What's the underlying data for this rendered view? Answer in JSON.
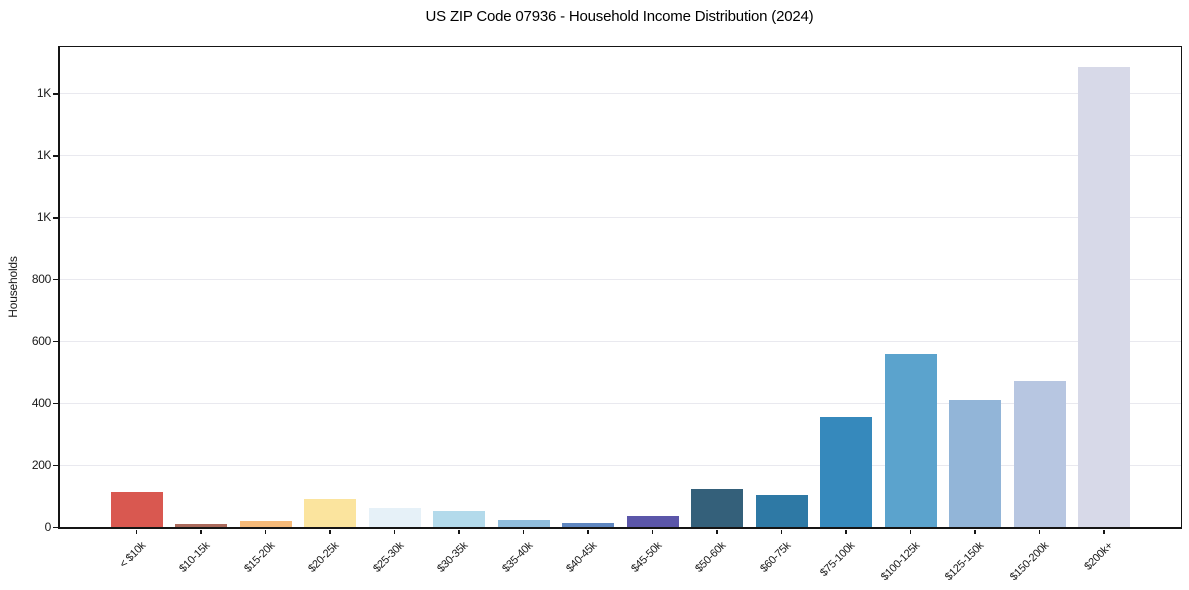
{
  "chart_data": {
    "type": "bar",
    "title": "US ZIP Code 07936 - Household Income Distribution (2024)",
    "xlabel": "",
    "ylabel": "Households",
    "categories": [
      "< $10k",
      "$10-15k",
      "$15-20k",
      "$20-25k",
      "$25-30k",
      "$30-35k",
      "$35-40k",
      "$40-45k",
      "$45-50k",
      "$50-60k",
      "$60-75k",
      "$75-100k",
      "$100-125k",
      "$125-150k",
      "$150-200k",
      "$200k+"
    ],
    "values": [
      114,
      9,
      18,
      90,
      62,
      52,
      24,
      14,
      37,
      122,
      104,
      355,
      558,
      411,
      470,
      1484
    ],
    "bar_colors": [
      "#d95850",
      "#ab6a5c",
      "#f6ba79",
      "#fbe49e",
      "#e6f1f8",
      "#b3daeb",
      "#90bddc",
      "#5e86c0",
      "#5b56a9",
      "#34607a",
      "#2e79a5",
      "#3689bc",
      "#5ba3cd",
      "#92b5d8",
      "#b7c6e1",
      "#d7d9e8"
    ],
    "ylim": [
      0,
      1550
    ],
    "yticks": {
      "values": [
        0,
        200,
        400,
        600,
        800,
        1000,
        1200,
        1400
      ],
      "labels": [
        "0",
        "200",
        "400",
        "600",
        "800",
        "1K",
        "1K",
        "1K"
      ]
    },
    "grid": "horizontal-only",
    "legend": "none",
    "colors": {
      "gridline": "#e9e9ef",
      "axis": "#151515",
      "text": "#1a1a1a",
      "background": "#ffffff"
    }
  }
}
